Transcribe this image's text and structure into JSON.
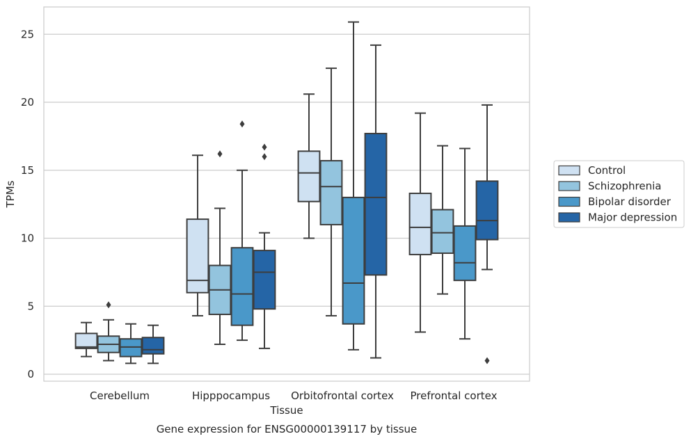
{
  "chart_data": {
    "type": "boxplot",
    "caption": "Gene expression for ENSG00000139117 by tissue",
    "xlabel": "Tissue",
    "ylabel": "TPMs",
    "ylim": [
      -0.5,
      27
    ],
    "yticks": [
      0,
      5,
      10,
      15,
      20,
      25
    ],
    "grid": "horizontal",
    "legend_position": "right",
    "categories": [
      "Cerebellum",
      "Hipppocampus",
      "Orbitofrontal cortex",
      "Prefrontal cortex"
    ],
    "series": [
      {
        "name": "Control",
        "color": "#cfe1f2",
        "boxes": [
          {
            "whislo": 1.3,
            "q1": 1.9,
            "med": 2.0,
            "q3": 3.0,
            "whishi": 3.8,
            "fliers": []
          },
          {
            "whislo": 4.3,
            "q1": 6.0,
            "med": 6.9,
            "q3": 11.4,
            "whishi": 16.1,
            "fliers": []
          },
          {
            "whislo": 10.0,
            "q1": 12.7,
            "med": 14.8,
            "q3": 16.4,
            "whishi": 20.6,
            "fliers": []
          },
          {
            "whislo": 3.1,
            "q1": 8.8,
            "med": 10.8,
            "q3": 13.3,
            "whishi": 19.2,
            "fliers": []
          }
        ]
      },
      {
        "name": "Schizophrenia",
        "color": "#93c4de",
        "boxes": [
          {
            "whislo": 1.0,
            "q1": 1.6,
            "med": 2.2,
            "q3": 2.8,
            "whishi": 4.0,
            "fliers": [
              5.1
            ]
          },
          {
            "whislo": 2.2,
            "q1": 4.4,
            "med": 6.2,
            "q3": 8.0,
            "whishi": 12.2,
            "fliers": [
              16.2
            ]
          },
          {
            "whislo": 4.3,
            "q1": 11.0,
            "med": 13.8,
            "q3": 15.7,
            "whishi": 22.5,
            "fliers": []
          },
          {
            "whislo": 5.9,
            "q1": 8.9,
            "med": 10.4,
            "q3": 12.1,
            "whishi": 16.8,
            "fliers": []
          }
        ]
      },
      {
        "name": "Bipolar disorder",
        "color": "#4a98c9",
        "boxes": [
          {
            "whislo": 0.8,
            "q1": 1.3,
            "med": 2.0,
            "q3": 2.6,
            "whishi": 3.7,
            "fliers": []
          },
          {
            "whislo": 2.5,
            "q1": 3.6,
            "med": 5.9,
            "q3": 9.3,
            "whishi": 15.0,
            "fliers": [
              18.4
            ]
          },
          {
            "whislo": 1.8,
            "q1": 3.7,
            "med": 6.7,
            "q3": 13.0,
            "whishi": 25.9,
            "fliers": []
          },
          {
            "whislo": 2.6,
            "q1": 6.9,
            "med": 8.2,
            "q3": 10.9,
            "whishi": 16.6,
            "fliers": []
          }
        ]
      },
      {
        "name": "Major depression",
        "color": "#2565a6",
        "boxes": [
          {
            "whislo": 0.8,
            "q1": 1.5,
            "med": 1.8,
            "q3": 2.7,
            "whishi": 3.6,
            "fliers": []
          },
          {
            "whislo": 1.9,
            "q1": 4.8,
            "med": 7.5,
            "q3": 9.1,
            "whishi": 10.4,
            "fliers": [
              16.0,
              16.7
            ]
          },
          {
            "whislo": 1.2,
            "q1": 7.3,
            "med": 13.0,
            "q3": 17.7,
            "whishi": 24.2,
            "fliers": []
          },
          {
            "whislo": 7.7,
            "q1": 9.9,
            "med": 11.3,
            "q3": 14.2,
            "whishi": 19.8,
            "fliers": [
              1.0
            ]
          }
        ]
      }
    ]
  }
}
